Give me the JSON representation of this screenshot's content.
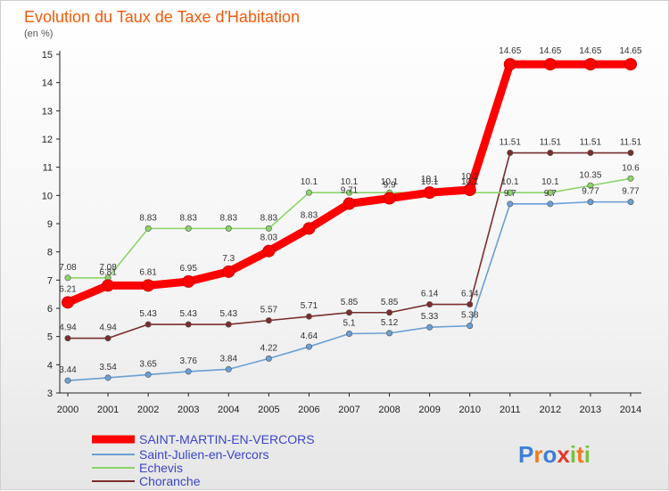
{
  "chart_data": {
    "type": "line",
    "title": "Evolution du Taux de Taxe d'Habitation",
    "subtitle": "(en %)",
    "x": [
      2000,
      2001,
      2002,
      2003,
      2004,
      2005,
      2006,
      2007,
      2008,
      2009,
      2010,
      2011,
      2012,
      2013,
      2014
    ],
    "ylim": [
      3,
      15
    ],
    "yticks": [
      3,
      4,
      5,
      6,
      7,
      8,
      9,
      10,
      11,
      12,
      13,
      14,
      15
    ],
    "grid": false,
    "legend_position": "bottom-left",
    "series": [
      {
        "name": "SAINT-MARTIN-EN-VERCORS",
        "color": "#ff0000",
        "values": [
          6.21,
          6.81,
          6.81,
          6.95,
          7.3,
          8.03,
          8.83,
          9.71,
          9.9,
          10.1,
          10.2,
          14.65,
          14.65,
          14.65,
          14.65
        ],
        "labels": [
          "6.21",
          "6.81",
          "6.81",
          "6.95",
          "7.3",
          "8.03",
          "8.83",
          "9.71",
          "9.9",
          "10.1",
          "10.2",
          "14.65",
          "14.65",
          "14.65",
          "14.65"
        ]
      },
      {
        "name": "Saint-Julien-en-Vercors",
        "color": "#6a9fd4",
        "values": [
          3.44,
          3.54,
          3.65,
          3.76,
          3.84,
          4.22,
          4.64,
          5.1,
          5.12,
          5.33,
          5.38,
          9.7,
          9.7,
          9.77,
          9.77
        ],
        "labels": [
          "3.44",
          "3.54",
          "3.65",
          "3.76",
          "3.84",
          "4.22",
          "4.64",
          "5.1",
          "5.12",
          "5.33",
          "5.38",
          "9.7",
          "9.7",
          "9.77",
          "9.77"
        ]
      },
      {
        "name": "Echevis",
        "color": "#8cd46a",
        "values": [
          7.08,
          7.08,
          8.83,
          8.83,
          8.83,
          8.83,
          10.1,
          10.1,
          10.1,
          10.1,
          10.1,
          10.1,
          10.1,
          10.35,
          10.6
        ],
        "labels": [
          "7.08",
          "7.08",
          "8.83",
          "8.83",
          "8.83",
          "8.83",
          "10.1",
          "10.1",
          "10.1",
          "10.1",
          "10.1",
          "10.1",
          "10.1",
          "10.35",
          "10.6"
        ]
      },
      {
        "name": "Choranche",
        "color": "#7a2e2e",
        "values": [
          4.94,
          4.94,
          5.43,
          5.43,
          5.43,
          5.57,
          5.71,
          5.85,
          5.85,
          6.14,
          6.14,
          11.51,
          11.51,
          11.51,
          11.51
        ],
        "labels": [
          "4.94",
          "4.94",
          "5.43",
          "5.43",
          "5.43",
          "5.57",
          "5.71",
          "5.85",
          "5.85",
          "6.14",
          "6.14",
          "11.51",
          "11.51",
          "11.51",
          "11.51"
        ]
      }
    ]
  },
  "brand": {
    "letters": [
      "P",
      "r",
      "o",
      "x",
      "i",
      "t",
      "i"
    ],
    "colors": [
      "#3c7fd6",
      "#f07a1a",
      "#3c7fd6",
      "#e8352a",
      "#7ac143",
      "#f07a1a",
      "#7ac143"
    ]
  }
}
